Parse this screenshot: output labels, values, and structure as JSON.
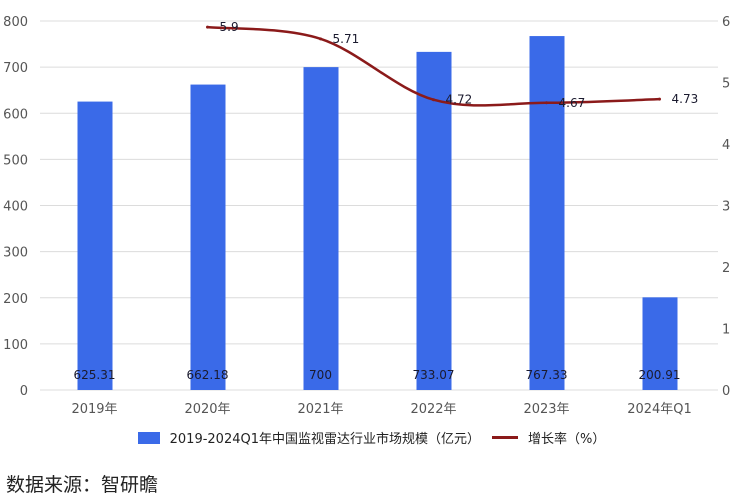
{
  "chart_data": {
    "type": "bar+line",
    "categories": [
      "2019年",
      "2020年",
      "2021年",
      "2022年",
      "2023年",
      "2024年Q1"
    ],
    "series": [
      {
        "name": "2019-2024Q1年中国监视雷达行业市场规模（亿元）",
        "type": "bar",
        "axis": "left",
        "color": "#3a6ae8",
        "values": [
          625.31,
          662.18,
          700,
          733.07,
          767.33,
          200.91
        ],
        "labels": [
          "625.31",
          "662.18",
          "700",
          "733.07",
          "767.33",
          "200.91"
        ]
      },
      {
        "name": "增长率（%）",
        "type": "line",
        "axis": "right",
        "color": "#8b1a1a",
        "values": [
          null,
          5.9,
          5.71,
          4.72,
          4.67,
          4.73
        ],
        "labels": [
          "",
          "5.9",
          "5.71",
          "4.72",
          "4.67",
          "4.73"
        ]
      }
    ],
    "y_left": {
      "range": [
        0,
        800
      ],
      "ticks": [
        "0",
        "100",
        "200",
        "300",
        "400",
        "500",
        "600",
        "700",
        "800"
      ]
    },
    "y_right": {
      "range": [
        0,
        6
      ],
      "ticks": [
        "0",
        "1",
        "2",
        "3",
        "4",
        "5",
        "6"
      ]
    },
    "grid": true,
    "legend": "bottom"
  },
  "source": "数据来源：智研瞻"
}
